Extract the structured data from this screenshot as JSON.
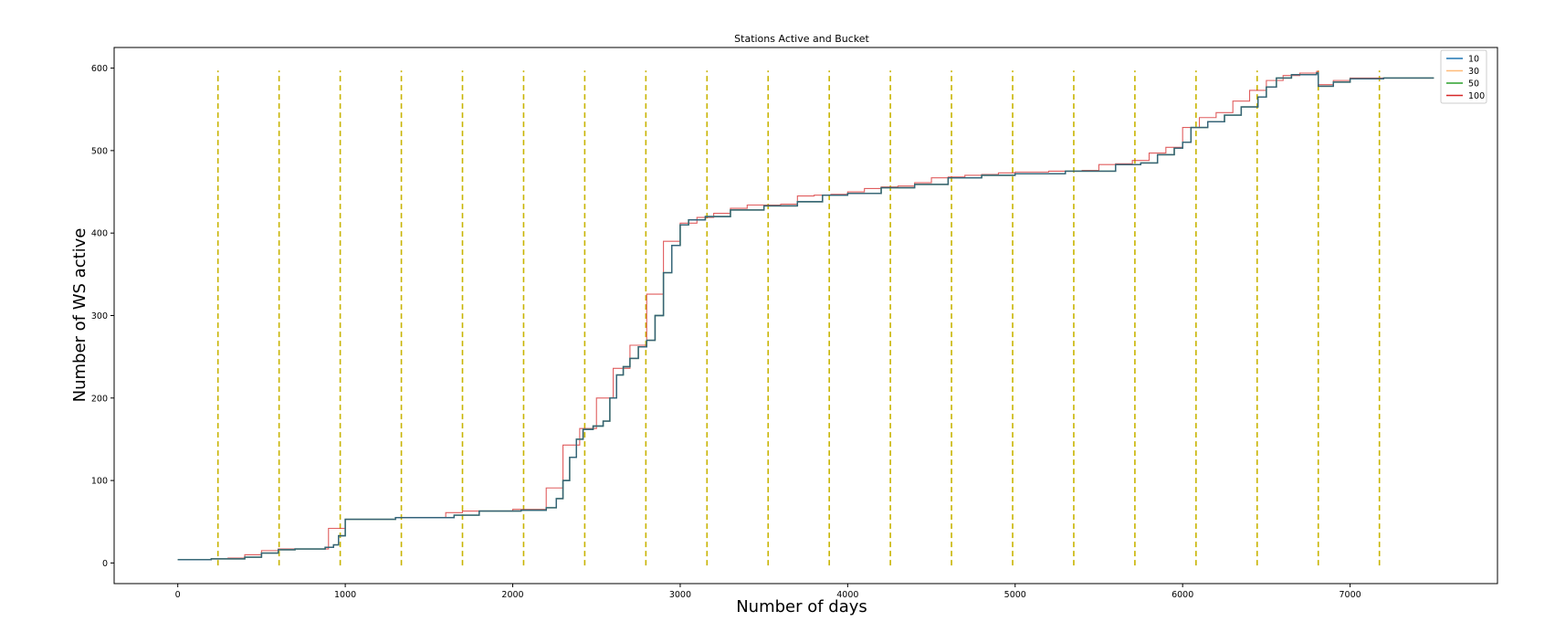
{
  "chart_data": {
    "type": "line",
    "title": "Stations Active and Bucket",
    "xlabel": "Number of days",
    "ylabel": "Number of WS active",
    "xlim": [
      -380,
      7880
    ],
    "ylim": [
      -25,
      625
    ],
    "xticks": [
      0,
      1000,
      2000,
      3000,
      4000,
      5000,
      6000,
      7000
    ],
    "yticks": [
      0,
      100,
      200,
      300,
      400,
      500,
      600
    ],
    "grid": false,
    "legend_position": "top-right",
    "vlines": {
      "color": "#c8b400",
      "style": "dashed",
      "ymin": -3,
      "ymax": 597,
      "x": [
        240,
        605,
        970,
        1335,
        1700,
        2065,
        2430,
        2795,
        3160,
        3525,
        3890,
        4255,
        4620,
        4985,
        5350,
        5715,
        6080,
        6445,
        6810,
        7175
      ]
    },
    "series": [
      {
        "name": "10",
        "color": "#1f77b4",
        "points": [
          [
            0,
            4
          ],
          [
            200,
            5
          ],
          [
            400,
            7
          ],
          [
            500,
            12
          ],
          [
            600,
            16
          ],
          [
            700,
            17
          ],
          [
            880,
            19
          ],
          [
            930,
            22
          ],
          [
            960,
            33
          ],
          [
            1000,
            53
          ],
          [
            1300,
            55
          ],
          [
            1650,
            58
          ],
          [
            1800,
            63
          ],
          [
            2050,
            64
          ],
          [
            2200,
            67
          ],
          [
            2260,
            78
          ],
          [
            2300,
            100
          ],
          [
            2340,
            128
          ],
          [
            2380,
            150
          ],
          [
            2420,
            162
          ],
          [
            2480,
            166
          ],
          [
            2540,
            172
          ],
          [
            2580,
            200
          ],
          [
            2620,
            228
          ],
          [
            2660,
            238
          ],
          [
            2700,
            248
          ],
          [
            2750,
            262
          ],
          [
            2800,
            270
          ],
          [
            2850,
            300
          ],
          [
            2900,
            352
          ],
          [
            2950,
            385
          ],
          [
            3000,
            410
          ],
          [
            3050,
            416
          ],
          [
            3150,
            420
          ],
          [
            3300,
            428
          ],
          [
            3500,
            433
          ],
          [
            3700,
            438
          ],
          [
            3850,
            446
          ],
          [
            4000,
            448
          ],
          [
            4200,
            455
          ],
          [
            4400,
            459
          ],
          [
            4600,
            467
          ],
          [
            4800,
            470
          ],
          [
            5000,
            472
          ],
          [
            5300,
            475
          ],
          [
            5600,
            483
          ],
          [
            5750,
            485
          ],
          [
            5850,
            495
          ],
          [
            5950,
            503
          ],
          [
            6000,
            510
          ],
          [
            6050,
            528
          ],
          [
            6150,
            535
          ],
          [
            6250,
            543
          ],
          [
            6350,
            553
          ],
          [
            6450,
            565
          ],
          [
            6500,
            577
          ],
          [
            6560,
            588
          ],
          [
            6650,
            592
          ],
          [
            6800,
            594
          ],
          [
            6810,
            578
          ],
          [
            6900,
            583
          ],
          [
            7000,
            587
          ],
          [
            7200,
            588
          ],
          [
            7500,
            588
          ]
        ]
      },
      {
        "name": "30",
        "color": "#ffbb78",
        "points": [
          [
            0,
            4
          ],
          [
            200,
            5
          ],
          [
            400,
            7
          ],
          [
            500,
            12
          ],
          [
            600,
            16
          ],
          [
            700,
            17
          ],
          [
            880,
            19
          ],
          [
            930,
            22
          ],
          [
            960,
            33
          ],
          [
            1000,
            53
          ],
          [
            1300,
            55
          ],
          [
            1650,
            58
          ],
          [
            1800,
            63
          ],
          [
            2050,
            64
          ],
          [
            2200,
            67
          ],
          [
            2260,
            78
          ],
          [
            2300,
            100
          ],
          [
            2340,
            128
          ],
          [
            2380,
            150
          ],
          [
            2420,
            162
          ],
          [
            2480,
            166
          ],
          [
            2540,
            172
          ],
          [
            2580,
            200
          ],
          [
            2620,
            228
          ],
          [
            2660,
            238
          ],
          [
            2700,
            248
          ],
          [
            2750,
            262
          ],
          [
            2800,
            270
          ],
          [
            2850,
            300
          ],
          [
            2900,
            352
          ],
          [
            2950,
            385
          ],
          [
            3000,
            410
          ],
          [
            3050,
            416
          ],
          [
            3150,
            420
          ],
          [
            3300,
            428
          ],
          [
            3500,
            433
          ],
          [
            3700,
            438
          ],
          [
            3850,
            446
          ],
          [
            4000,
            448
          ],
          [
            4200,
            455
          ],
          [
            4400,
            459
          ],
          [
            4600,
            467
          ],
          [
            4800,
            470
          ],
          [
            5000,
            472
          ],
          [
            5300,
            475
          ],
          [
            5600,
            483
          ],
          [
            5750,
            485
          ],
          [
            5850,
            495
          ],
          [
            5950,
            503
          ],
          [
            6000,
            510
          ],
          [
            6050,
            528
          ],
          [
            6150,
            535
          ],
          [
            6250,
            543
          ],
          [
            6350,
            553
          ],
          [
            6450,
            565
          ],
          [
            6500,
            577
          ],
          [
            6560,
            588
          ],
          [
            6650,
            592
          ],
          [
            6800,
            594
          ],
          [
            6810,
            578
          ],
          [
            6900,
            583
          ],
          [
            7000,
            587
          ],
          [
            7200,
            588
          ],
          [
            7500,
            588
          ]
        ]
      },
      {
        "name": "50",
        "color": "#2ca02c",
        "points": [
          [
            0,
            4
          ],
          [
            200,
            5
          ],
          [
            400,
            7
          ],
          [
            500,
            12
          ],
          [
            600,
            16
          ],
          [
            700,
            17
          ],
          [
            880,
            19
          ],
          [
            930,
            22
          ],
          [
            960,
            33
          ],
          [
            1000,
            53
          ],
          [
            1300,
            55
          ],
          [
            1650,
            58
          ],
          [
            1800,
            63
          ],
          [
            2050,
            64
          ],
          [
            2200,
            67
          ],
          [
            2260,
            78
          ],
          [
            2300,
            100
          ],
          [
            2340,
            128
          ],
          [
            2380,
            150
          ],
          [
            2420,
            162
          ],
          [
            2480,
            166
          ],
          [
            2540,
            172
          ],
          [
            2580,
            200
          ],
          [
            2620,
            228
          ],
          [
            2660,
            238
          ],
          [
            2700,
            248
          ],
          [
            2750,
            262
          ],
          [
            2800,
            270
          ],
          [
            2850,
            300
          ],
          [
            2900,
            352
          ],
          [
            2950,
            385
          ],
          [
            3000,
            410
          ],
          [
            3050,
            416
          ],
          [
            3150,
            420
          ],
          [
            3300,
            428
          ],
          [
            3500,
            433
          ],
          [
            3700,
            438
          ],
          [
            3850,
            446
          ],
          [
            4000,
            448
          ],
          [
            4200,
            455
          ],
          [
            4400,
            459
          ],
          [
            4600,
            467
          ],
          [
            4800,
            470
          ],
          [
            5000,
            472
          ],
          [
            5300,
            475
          ],
          [
            5600,
            483
          ],
          [
            5750,
            485
          ],
          [
            5850,
            495
          ],
          [
            5950,
            503
          ],
          [
            6000,
            510
          ],
          [
            6050,
            528
          ],
          [
            6150,
            535
          ],
          [
            6250,
            543
          ],
          [
            6350,
            553
          ],
          [
            6450,
            565
          ],
          [
            6500,
            577
          ],
          [
            6560,
            588
          ],
          [
            6650,
            592
          ],
          [
            6800,
            594
          ],
          [
            6810,
            578
          ],
          [
            6900,
            583
          ],
          [
            7000,
            587
          ],
          [
            7200,
            588
          ],
          [
            7500,
            588
          ]
        ]
      },
      {
        "name": "100",
        "color": "#d62728",
        "points": [
          [
            0,
            4
          ],
          [
            100,
            4
          ],
          [
            200,
            5
          ],
          [
            300,
            6
          ],
          [
            400,
            10
          ],
          [
            500,
            15
          ],
          [
            600,
            17
          ],
          [
            900,
            19
          ],
          [
            900,
            42
          ],
          [
            1000,
            53
          ],
          [
            1300,
            55
          ],
          [
            1600,
            61
          ],
          [
            1700,
            63
          ],
          [
            2000,
            65
          ],
          [
            2200,
            91
          ],
          [
            2300,
            143
          ],
          [
            2400,
            163
          ],
          [
            2500,
            200
          ],
          [
            2600,
            236
          ],
          [
            2700,
            264
          ],
          [
            2800,
            326
          ],
          [
            2900,
            390
          ],
          [
            3000,
            412
          ],
          [
            3100,
            419
          ],
          [
            3200,
            424
          ],
          [
            3300,
            430
          ],
          [
            3400,
            434
          ],
          [
            3500,
            434
          ],
          [
            3600,
            435
          ],
          [
            3700,
            445
          ],
          [
            3800,
            446
          ],
          [
            3900,
            447
          ],
          [
            4000,
            450
          ],
          [
            4100,
            454
          ],
          [
            4200,
            456
          ],
          [
            4300,
            457
          ],
          [
            4400,
            461
          ],
          [
            4500,
            467
          ],
          [
            4600,
            468
          ],
          [
            4700,
            470
          ],
          [
            4800,
            471
          ],
          [
            4900,
            473
          ],
          [
            5000,
            474
          ],
          [
            5200,
            475
          ],
          [
            5400,
            476
          ],
          [
            5500,
            483
          ],
          [
            5600,
            484
          ],
          [
            5700,
            488
          ],
          [
            5800,
            497
          ],
          [
            5900,
            504
          ],
          [
            6000,
            528
          ],
          [
            6100,
            540
          ],
          [
            6200,
            546
          ],
          [
            6300,
            560
          ],
          [
            6400,
            573
          ],
          [
            6500,
            585
          ],
          [
            6600,
            591
          ],
          [
            6700,
            594
          ],
          [
            6800,
            596
          ],
          [
            6810,
            580
          ],
          [
            6900,
            585
          ],
          [
            7000,
            588
          ],
          [
            7200,
            588
          ],
          [
            7500,
            588
          ]
        ]
      }
    ]
  }
}
